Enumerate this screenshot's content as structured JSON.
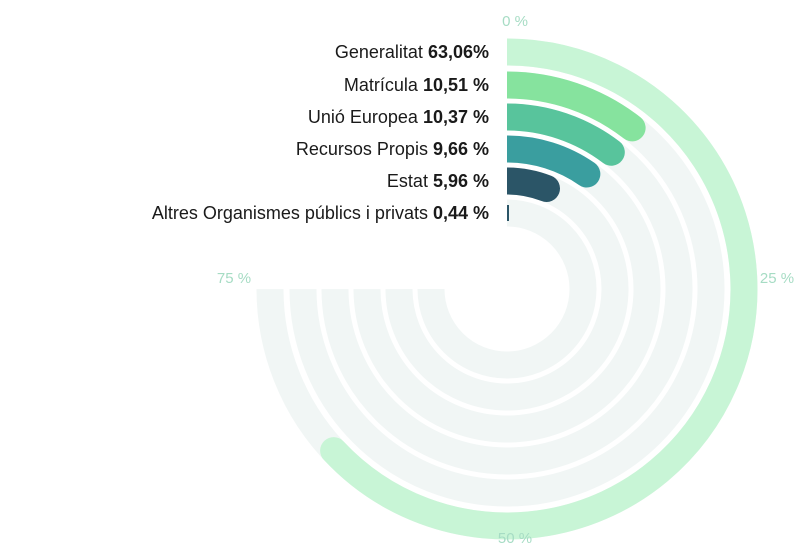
{
  "chart_data": {
    "type": "radial-bar",
    "categories": [
      "Generalitat",
      "Matrícula",
      "Unió Europea",
      "Recursos Propis",
      "Estat",
      "Altres Organismes públics i privats"
    ],
    "value_labels": [
      "63,06%",
      "10,51 %",
      "10,37 %",
      "9,66 %",
      "5,96 %",
      "0,44 %"
    ],
    "values": [
      63.06,
      10.51,
      10.37,
      9.66,
      5.96,
      0.44
    ],
    "colors": [
      "#c8f5d6",
      "#86e39e",
      "#58c49c",
      "#3a9e9f",
      "#2b5567",
      "#2b5567"
    ],
    "track_color": "#f1f6f5",
    "axis_ticks": [
      "0 %",
      "25 %",
      "50 %",
      "75 %"
    ],
    "range": [
      0,
      100
    ]
  }
}
